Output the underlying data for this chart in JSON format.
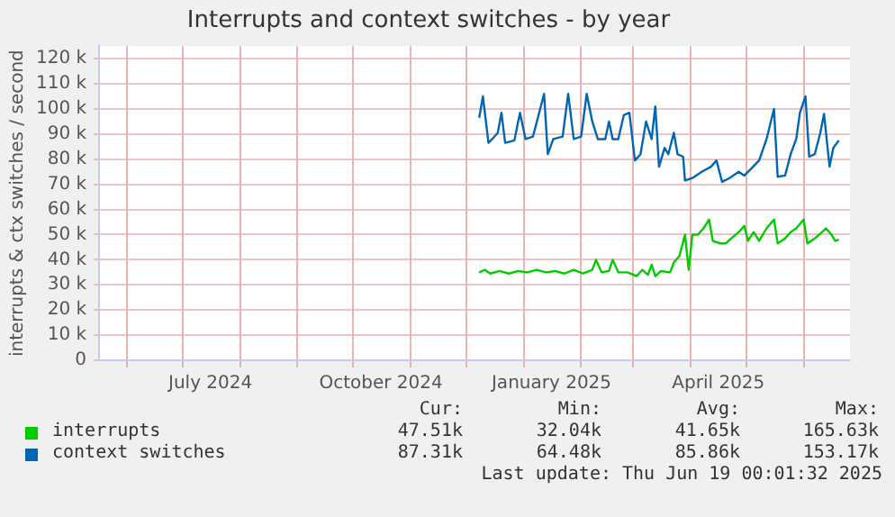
{
  "chart_data": {
    "type": "line",
    "title": "Interrupts and context switches - by year",
    "ylabel": "interrupts & ctx switches / second",
    "xlim": [
      "2024-05-17",
      "2025-06-26"
    ],
    "xticks": [
      {
        "value": "2024-06-01",
        "label": null
      },
      {
        "value": "2024-07-01",
        "label": null
      },
      {
        "value": "2024-07-16",
        "label": "July 2024"
      },
      {
        "value": "2024-08-01",
        "label": null
      },
      {
        "value": "2024-09-01",
        "label": null
      },
      {
        "value": "2024-10-01",
        "label": null
      },
      {
        "value": "2024-10-16",
        "label": "October 2024"
      },
      {
        "value": "2024-11-01",
        "label": null
      },
      {
        "value": "2024-12-01",
        "label": null
      },
      {
        "value": "2025-01-01",
        "label": null
      },
      {
        "value": "2025-01-16",
        "label": "January 2025"
      },
      {
        "value": "2025-02-01",
        "label": null
      },
      {
        "value": "2025-03-01",
        "label": null
      },
      {
        "value": "2025-04-01",
        "label": null
      },
      {
        "value": "2025-04-16",
        "label": "April 2025"
      },
      {
        "value": "2025-05-01",
        "label": null
      },
      {
        "value": "2025-06-01",
        "label": null
      }
    ],
    "ylim": [
      0,
      125000
    ],
    "yticks": [
      0,
      {
        "value": 10000,
        "label": "10 k"
      },
      {
        "value": 20000,
        "label": "20 k"
      },
      {
        "value": 30000,
        "label": "30 k"
      },
      {
        "value": 40000,
        "label": "40 k"
      },
      {
        "value": 50000,
        "label": "50 k"
      },
      {
        "value": 60000,
        "label": "60 k"
      },
      {
        "value": 70000,
        "label": "70 k"
      },
      {
        "value": 80000,
        "label": "80 k"
      },
      {
        "value": 90000,
        "label": "90 k"
      },
      {
        "value": 100000,
        "label": "100 k"
      },
      {
        "value": 110000,
        "label": "110 k"
      },
      {
        "value": 120000,
        "label": "120 k"
      }
    ],
    "grid": true,
    "legend": "bottom",
    "marker": "none",
    "series": [
      {
        "name": "interrupts",
        "color": "#00cc00",
        "x": [
          "2024-12-08",
          "2024-12-11",
          "2024-12-14",
          "2024-12-19",
          "2024-12-24",
          "2024-12-29",
          "2025-01-03",
          "2025-01-08",
          "2025-01-13",
          "2025-01-18",
          "2025-01-23",
          "2025-01-28",
          "2025-02-02",
          "2025-02-07",
          "2025-02-09",
          "2025-02-12",
          "2025-02-16",
          "2025-02-18",
          "2025-02-21",
          "2025-02-26",
          "2025-03-03",
          "2025-03-06",
          "2025-03-09",
          "2025-03-11",
          "2025-03-13",
          "2025-03-16",
          "2025-03-21",
          "2025-03-23",
          "2025-03-26",
          "2025-03-29",
          "2025-03-31",
          "2025-04-02",
          "2025-04-05",
          "2025-04-08",
          "2025-04-11",
          "2025-04-13",
          "2025-04-17",
          "2025-04-20",
          "2025-04-23",
          "2025-04-27",
          "2025-04-30",
          "2025-05-02",
          "2025-05-05",
          "2025-05-08",
          "2025-05-12",
          "2025-05-16",
          "2025-05-18",
          "2025-05-22",
          "2025-05-25",
          "2025-05-28",
          "2025-06-01",
          "2025-06-03",
          "2025-06-07",
          "2025-06-11",
          "2025-06-13",
          "2025-06-16",
          "2025-06-18",
          "2025-06-20"
        ],
        "values": [
          35000,
          36000,
          34500,
          35500,
          34500,
          35500,
          35000,
          36000,
          35000,
          35500,
          34500,
          36000,
          34500,
          36000,
          40000,
          35000,
          35500,
          40000,
          35000,
          35000,
          33500,
          36000,
          34000,
          38000,
          33500,
          35500,
          35000,
          39000,
          41500,
          50000,
          36000,
          50000,
          50000,
          52500,
          56000,
          47500,
          46500,
          46500,
          48500,
          51000,
          53500,
          47500,
          51000,
          47500,
          52500,
          56000,
          46500,
          48500,
          51000,
          52500,
          56000,
          46500,
          48500,
          51000,
          52500,
          50000,
          47500,
          48000
        ]
      },
      {
        "name": "context switches",
        "color": "#0066b3",
        "x": [
          "2024-12-08",
          "2024-12-10",
          "2024-12-13",
          "2024-12-15",
          "2024-12-18",
          "2024-12-20",
          "2024-12-22",
          "2024-12-27",
          "2024-12-30",
          "2025-01-02",
          "2025-01-06",
          "2025-01-09",
          "2025-01-12",
          "2025-01-14",
          "2025-01-17",
          "2025-01-22",
          "2025-01-25",
          "2025-01-28",
          "2025-02-01",
          "2025-02-04",
          "2025-02-07",
          "2025-02-10",
          "2025-02-14",
          "2025-02-16",
          "2025-02-18",
          "2025-02-21",
          "2025-02-24",
          "2025-02-27",
          "2025-03-02",
          "2025-03-05",
          "2025-03-08",
          "2025-03-11",
          "2025-03-13",
          "2025-03-15",
          "2025-03-18",
          "2025-03-20",
          "2025-03-23",
          "2025-03-25",
          "2025-03-28",
          "2025-03-29",
          "2025-04-02",
          "2025-04-07",
          "2025-04-12",
          "2025-04-15",
          "2025-04-18",
          "2025-04-22",
          "2025-04-27",
          "2025-04-30",
          "2025-05-04",
          "2025-05-08",
          "2025-05-12",
          "2025-05-16",
          "2025-05-18",
          "2025-05-22",
          "2025-05-25",
          "2025-05-28",
          "2025-05-30",
          "2025-06-02",
          "2025-06-04",
          "2025-06-07",
          "2025-06-10",
          "2025-06-12",
          "2025-06-15",
          "2025-06-17",
          "2025-06-20"
        ],
        "values": [
          96500,
          105000,
          86500,
          88000,
          90500,
          98500,
          86500,
          87500,
          98500,
          88000,
          89000,
          97500,
          106000,
          82000,
          88000,
          89000,
          106000,
          88000,
          89000,
          106000,
          95000,
          88000,
          88000,
          95000,
          88000,
          88000,
          97500,
          98500,
          79500,
          82000,
          95000,
          88000,
          101000,
          77000,
          84500,
          82000,
          90500,
          82000,
          81000,
          71500,
          72500,
          75000,
          77000,
          79500,
          71000,
          72500,
          75000,
          73500,
          76500,
          79500,
          88000,
          100000,
          73000,
          73500,
          82000,
          88000,
          98500,
          105000,
          81000,
          82000,
          90500,
          98000,
          77000,
          84500,
          87500
        ]
      }
    ],
    "annotations": [
      "Cur:",
      "Min:",
      "Avg:",
      "Max:",
      "47.51k",
      "32.04k",
      "41.65k",
      "165.63k",
      "87.31k",
      "64.48k",
      "85.86k",
      "153.17k",
      "Last update: Thu Jun 19 00:01:32 2025"
    ]
  }
}
